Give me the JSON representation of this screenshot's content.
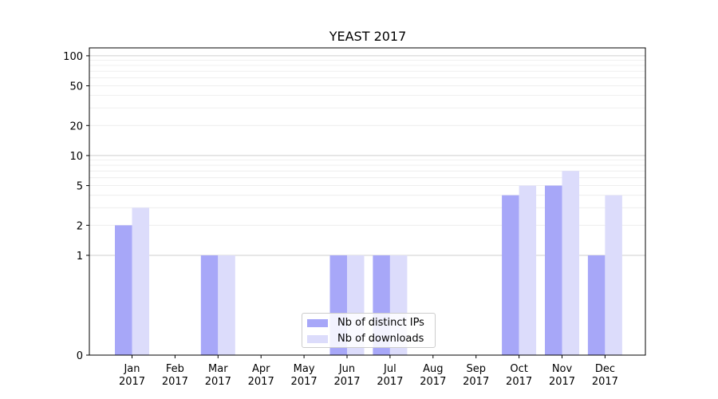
{
  "chart_data": {
    "type": "bar",
    "title": "YEAST 2017",
    "categories": [
      "Jan\n2017",
      "Feb\n2017",
      "Mar\n2017",
      "Apr\n2017",
      "May\n2017",
      "Jun\n2017",
      "Jul\n2017",
      "Aug\n2017",
      "Sep\n2017",
      "Oct\n2017",
      "Nov\n2017",
      "Dec\n2017"
    ],
    "series": [
      {
        "name": "Nb of distinct IPs",
        "color": "#a7a7f8",
        "values": [
          2,
          0,
          1,
          0,
          0,
          1,
          1,
          0,
          0,
          4,
          5,
          1
        ]
      },
      {
        "name": "Nb of downloads",
        "color": "#dcdcfb",
        "values": [
          3,
          0,
          1,
          0,
          0,
          1,
          1,
          0,
          0,
          5,
          7,
          4
        ]
      }
    ],
    "y_scale": "symlog",
    "y_ticks": [
      0,
      1,
      2,
      5,
      10,
      20,
      50,
      100
    ],
    "ylim": [
      0,
      120
    ],
    "grid": "horizontal",
    "legend_position": "bottom-center"
  }
}
